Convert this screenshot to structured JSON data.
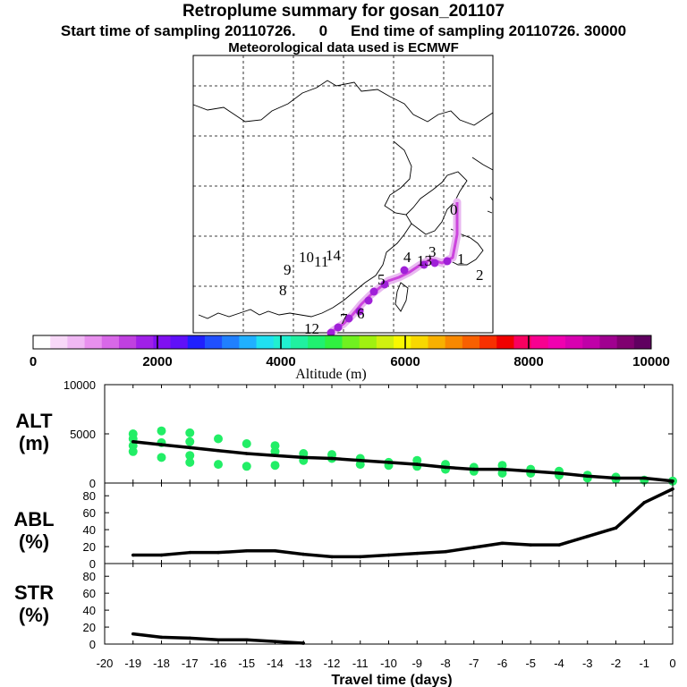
{
  "header": {
    "title": "Retroplume summary for gosan_201107",
    "start_label": "Start time of sampling 20110726.",
    "start_value": "0",
    "end_label": "End time of sampling 20110726. 30000",
    "met_line": "Meteorological data used is ECMWF"
  },
  "colors": {
    "scatter": "#22ee66",
    "line": "#000000",
    "trajectory": "#cc44dd",
    "grid": "#000000"
  },
  "map": {
    "trajectory_labels": [
      "0",
      "1",
      "2",
      "3",
      "4",
      "5",
      "6",
      "7",
      "8",
      "9",
      "10",
      "11",
      "12",
      "13",
      "14"
    ]
  },
  "colorbar": {
    "colors": [
      "#ffffff",
      "#f8d8f8",
      "#f0b8f4",
      "#e890ee",
      "#d868e8",
      "#c040e0",
      "#a020e8",
      "#8010f0",
      "#6010f8",
      "#2020ff",
      "#2050ff",
      "#2080ff",
      "#20b0ff",
      "#20e0f0",
      "#20f0d0",
      "#20f0a0",
      "#20f070",
      "#30f040",
      "#70f020",
      "#a0f010",
      "#d0f010",
      "#f8f800",
      "#f8d800",
      "#f8b000",
      "#f88800",
      "#f86000",
      "#f83000",
      "#f00000",
      "#f80060",
      "#f80090",
      "#f000b0",
      "#d800b0",
      "#c000a8",
      "#a00090",
      "#800070",
      "#600060"
    ],
    "tick_labels": [
      "0",
      "2000",
      "4000",
      "6000",
      "8000",
      "10000"
    ],
    "label": "Altitude (m)"
  },
  "chart_data": [
    {
      "type": "line",
      "panel": "ALT",
      "ylabel": "ALT\n(m)",
      "ylim": [
        0,
        10000
      ],
      "yticks": [
        0,
        5000,
        10000
      ],
      "xlim": [
        -20,
        0
      ],
      "x": [
        -19,
        -18,
        -17,
        -16,
        -15,
        -14,
        -13,
        -12,
        -11,
        -10,
        -9,
        -8,
        -7,
        -6,
        -5,
        -4,
        -3,
        -2,
        -1,
        0
      ],
      "values": [
        4200,
        3900,
        3600,
        3300,
        3000,
        2800,
        2600,
        2500,
        2300,
        2100,
        1900,
        1600,
        1400,
        1400,
        1200,
        1000,
        700,
        500,
        500,
        200
      ],
      "scatter": [
        {
          "x": -19,
          "y": 5000
        },
        {
          "x": -19,
          "y": 4500
        },
        {
          "x": -19,
          "y": 3800
        },
        {
          "x": -19,
          "y": 3200
        },
        {
          "x": -18,
          "y": 5300
        },
        {
          "x": -18,
          "y": 4100
        },
        {
          "x": -18,
          "y": 2600
        },
        {
          "x": -17,
          "y": 5100
        },
        {
          "x": -17,
          "y": 4200
        },
        {
          "x": -17,
          "y": 2800
        },
        {
          "x": -17,
          "y": 2100
        },
        {
          "x": -16,
          "y": 4500
        },
        {
          "x": -16,
          "y": 1900
        },
        {
          "x": -15,
          "y": 4000
        },
        {
          "x": -15,
          "y": 1700
        },
        {
          "x": -14,
          "y": 3800
        },
        {
          "x": -14,
          "y": 3200
        },
        {
          "x": -14,
          "y": 1800
        },
        {
          "x": -13,
          "y": 3000
        },
        {
          "x": -13,
          "y": 2300
        },
        {
          "x": -12,
          "y": 2900
        },
        {
          "x": -12,
          "y": 2500
        },
        {
          "x": -11,
          "y": 2500
        },
        {
          "x": -11,
          "y": 1900
        },
        {
          "x": -10,
          "y": 2100
        },
        {
          "x": -10,
          "y": 1800
        },
        {
          "x": -9,
          "y": 2300
        },
        {
          "x": -9,
          "y": 1700
        },
        {
          "x": -8,
          "y": 1900
        },
        {
          "x": -8,
          "y": 1400
        },
        {
          "x": -7,
          "y": 1600
        },
        {
          "x": -7,
          "y": 1200
        },
        {
          "x": -6,
          "y": 1800
        },
        {
          "x": -6,
          "y": 1000
        },
        {
          "x": -5,
          "y": 1400
        },
        {
          "x": -5,
          "y": 1000
        },
        {
          "x": -4,
          "y": 1200
        },
        {
          "x": -4,
          "y": 800
        },
        {
          "x": -3,
          "y": 800
        },
        {
          "x": -3,
          "y": 500
        },
        {
          "x": -2,
          "y": 600
        },
        {
          "x": -2,
          "y": 400
        },
        {
          "x": -1,
          "y": 300
        },
        {
          "x": 0,
          "y": 200
        }
      ]
    },
    {
      "type": "line",
      "panel": "ABL",
      "ylabel": "ABL\n(%)",
      "ylim": [
        0,
        95
      ],
      "yticks": [
        0,
        20,
        40,
        60,
        80
      ],
      "xlim": [
        -20,
        0
      ],
      "x": [
        -19,
        -18,
        -17,
        -16,
        -15,
        -14,
        -13,
        -12,
        -11,
        -10,
        -9,
        -8,
        -7,
        -6,
        -5,
        -4,
        -3,
        -2,
        -1,
        0
      ],
      "values": [
        10,
        10,
        13,
        13,
        15,
        15,
        11,
        8,
        8,
        10,
        12,
        14,
        19,
        24,
        22,
        22,
        32,
        42,
        72,
        88
      ]
    },
    {
      "type": "line",
      "panel": "STR",
      "ylabel": "STR\n(%)",
      "ylim": [
        0,
        95
      ],
      "yticks": [
        0,
        20,
        40,
        60,
        80
      ],
      "xlim": [
        -20,
        0
      ],
      "x": [
        -19,
        -18,
        -17,
        -16,
        -15,
        -14,
        -13
      ],
      "values": [
        12,
        8,
        7,
        5,
        5,
        3,
        1
      ],
      "xlabel": "Travel time (days)",
      "xticks": [
        -20,
        -19,
        -18,
        -17,
        -16,
        -15,
        -14,
        -13,
        -12,
        -11,
        -10,
        -9,
        -8,
        -7,
        -6,
        -5,
        -4,
        -3,
        -2,
        -1,
        0
      ]
    }
  ]
}
